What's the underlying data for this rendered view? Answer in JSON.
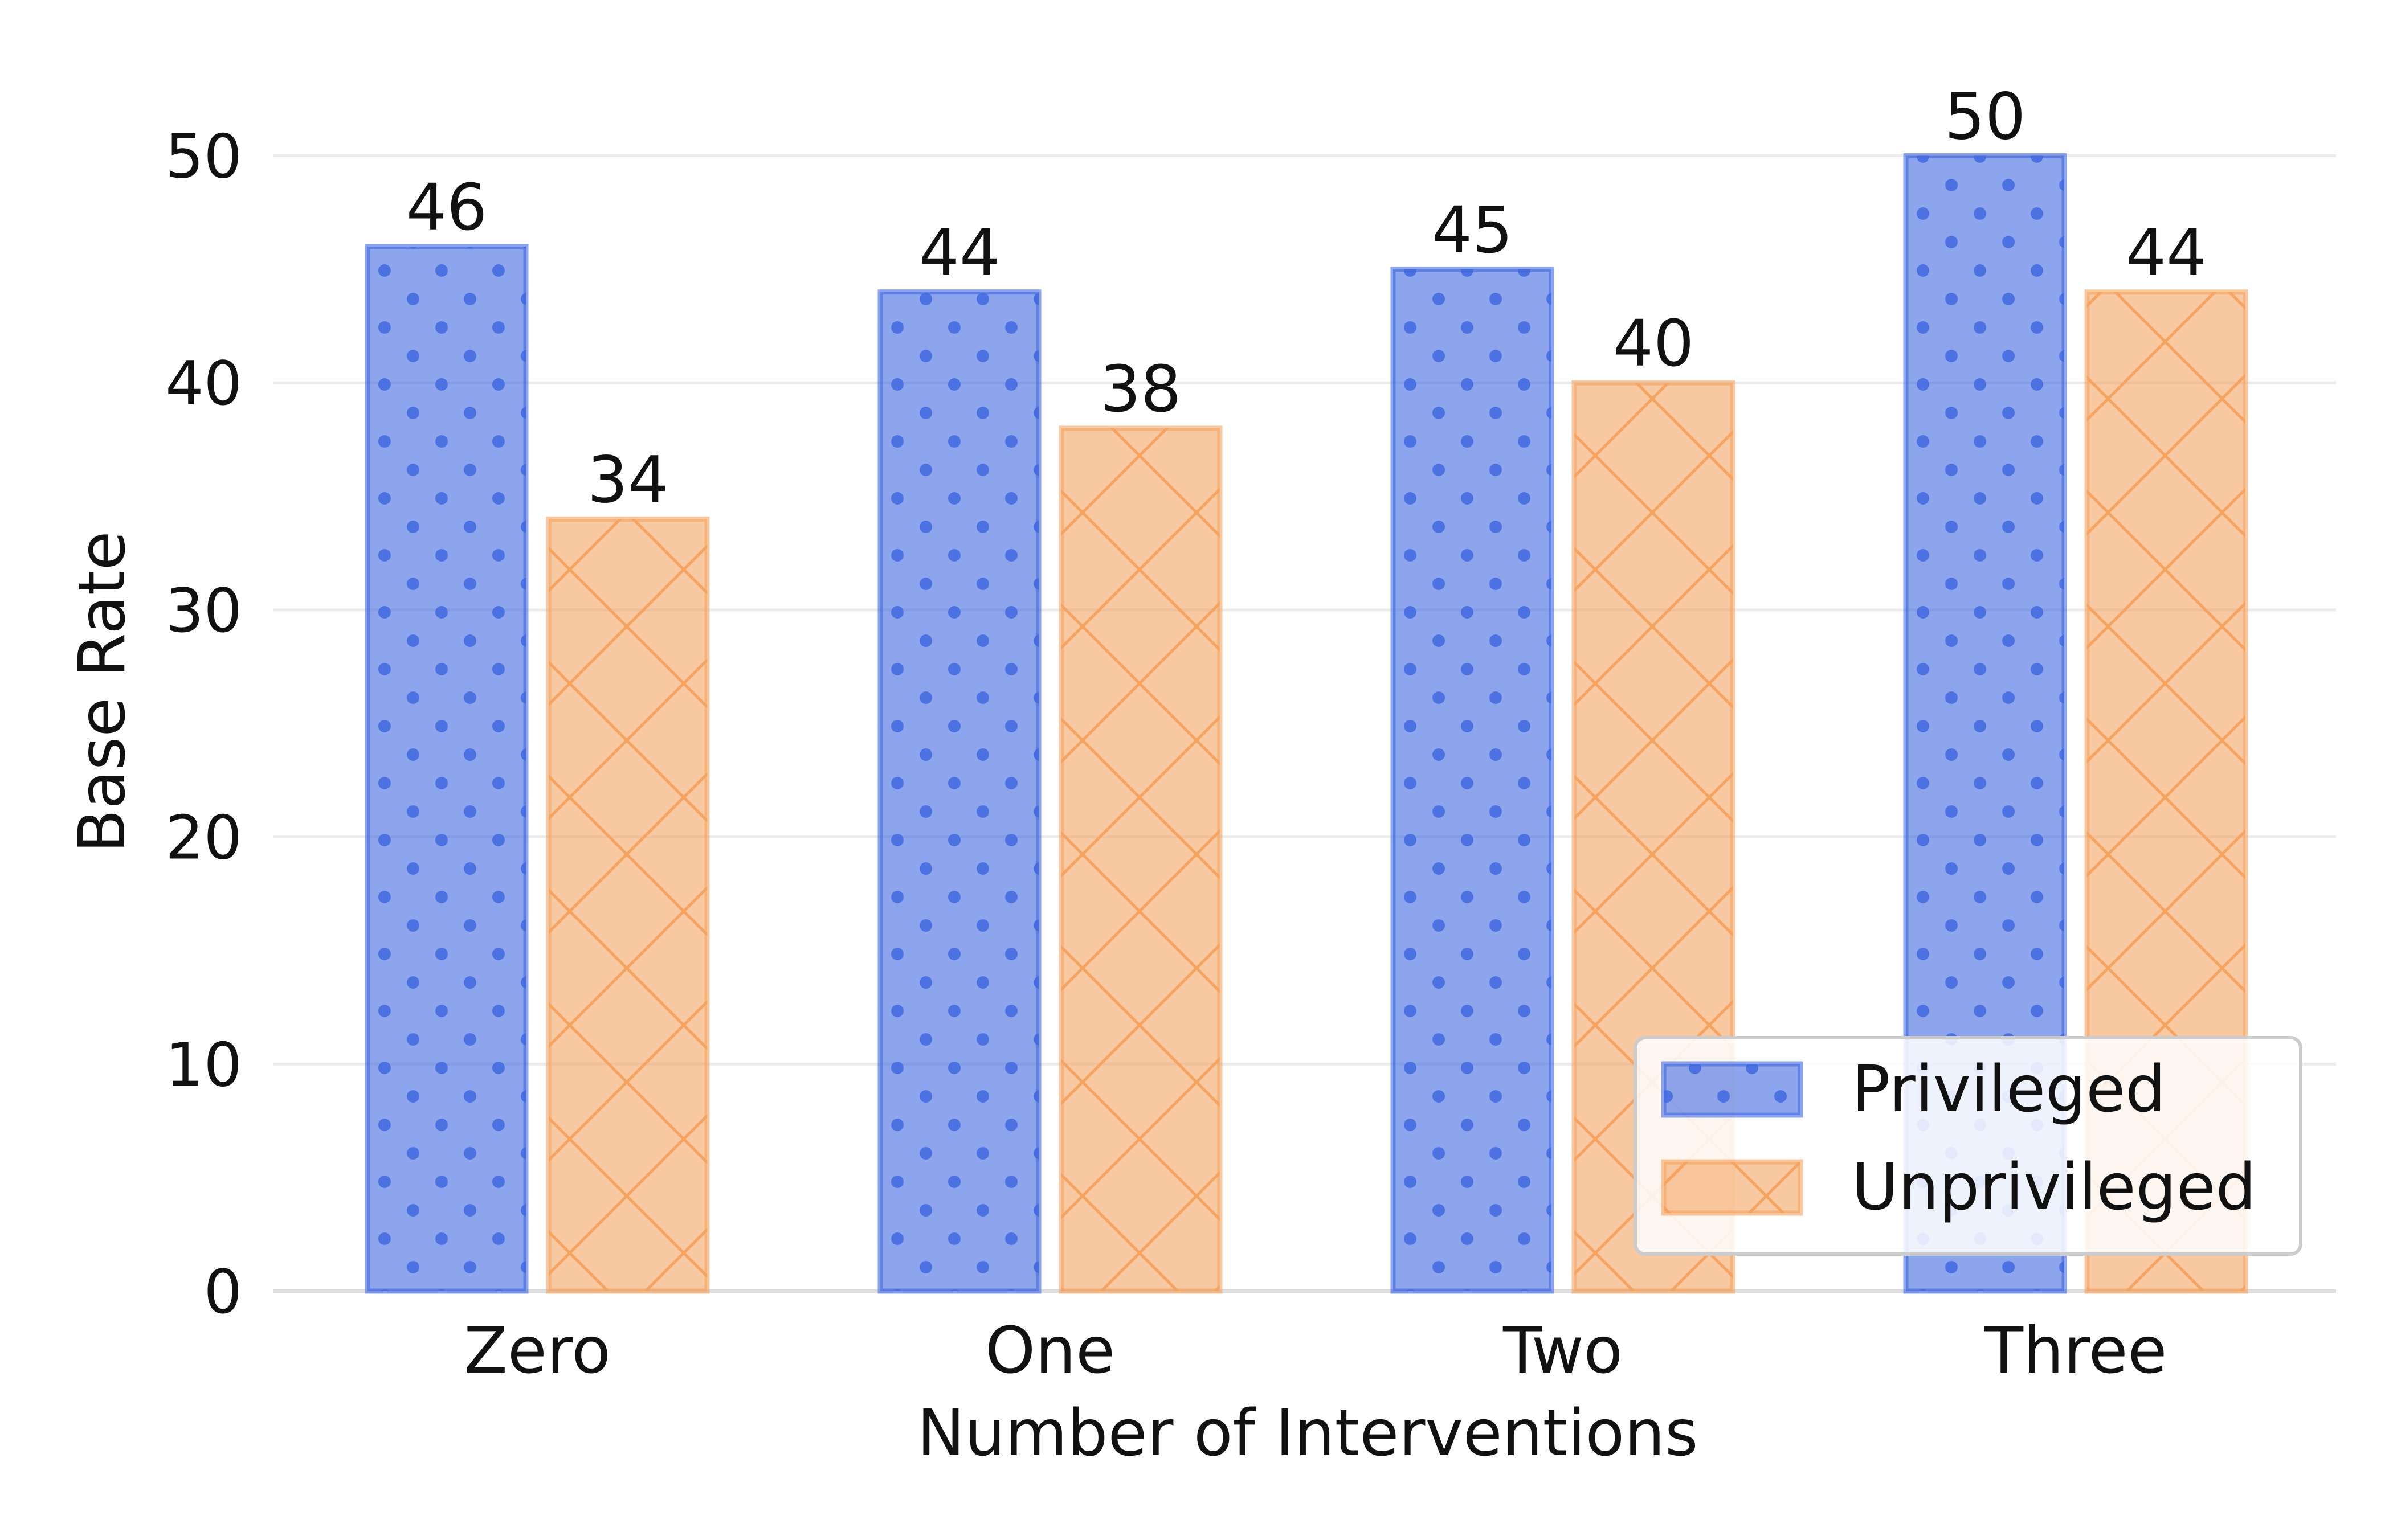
{
  "chart_data": {
    "type": "bar",
    "title": "",
    "xlabel": "Number of Interventions",
    "ylabel": "Base Rate",
    "categories": [
      "Zero",
      "One",
      "Two",
      "Three"
    ],
    "series": [
      {
        "name": "Privileged",
        "values": [
          46,
          44,
          45,
          50
        ],
        "color": "#4169e1",
        "hatch": "dots"
      },
      {
        "name": "Unprivileged",
        "values": [
          34,
          38,
          40,
          44
        ],
        "color": "#f4a460",
        "hatch": "crosshatch"
      }
    ],
    "ylim": [
      0,
      52.5
    ],
    "yticks": [
      0,
      10,
      20,
      30,
      40,
      50
    ],
    "grid": true,
    "legend_position": "bottom-right",
    "data_labels": true
  }
}
